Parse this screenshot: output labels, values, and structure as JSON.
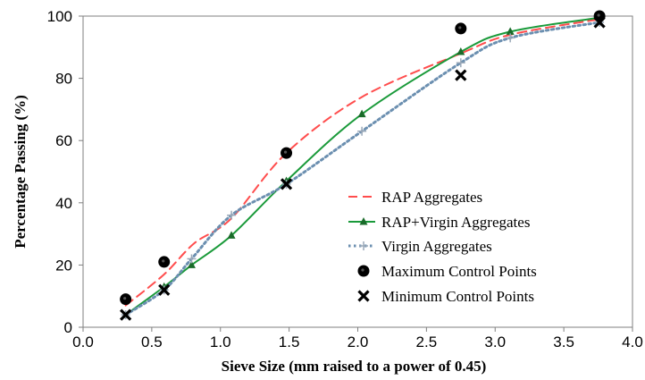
{
  "chart_data": {
    "type": "line",
    "title": "",
    "xlabel": "Sieve Size (mm raised to a power of 0.45)",
    "ylabel": "Percentage Passing (%)",
    "xlim": [
      0,
      4
    ],
    "ylim": [
      0,
      100
    ],
    "x_ticks": [
      "0.0",
      "0.5",
      "1.0",
      "1.5",
      "2.0",
      "2.5",
      "3.0",
      "3.5",
      "4.0"
    ],
    "y_ticks": [
      "0",
      "20",
      "40",
      "60",
      "80",
      "100"
    ],
    "grid": false,
    "legend_position": "bottom-right",
    "series": [
      {
        "name": "RAP Aggregates",
        "color": "#ff4d4d",
        "style": "dashed",
        "marker": "none",
        "x": [
          0.31,
          0.59,
          0.81,
          1.08,
          1.48,
          2.03,
          2.75,
          3.11,
          3.76
        ],
        "y": [
          7,
          17,
          27,
          35,
          56,
          74,
          88,
          94,
          99
        ]
      },
      {
        "name": "RAP+Virgin Aggregates",
        "color": "#1a9a3a",
        "style": "solid",
        "marker": "triangle",
        "x": [
          0.31,
          0.59,
          0.79,
          1.08,
          1.48,
          2.03,
          2.75,
          3.11,
          3.76
        ],
        "y": [
          4,
          13,
          20,
          29.5,
          47,
          68.5,
          88.5,
          95,
          99.5
        ]
      },
      {
        "name": "Virgin Aggregates",
        "color": "#6b8fb0",
        "style": "dotted",
        "marker": "plus",
        "x": [
          0.31,
          0.59,
          0.79,
          1.08,
          1.48,
          2.03,
          2.75,
          3.11,
          3.76
        ],
        "y": [
          4,
          12,
          22,
          36,
          46,
          63,
          85,
          93,
          98
        ]
      },
      {
        "name": "Maximum Control Points",
        "color": "#000000",
        "style": "none",
        "marker": "circle",
        "x": [
          0.31,
          0.59,
          1.48,
          2.75,
          3.76
        ],
        "y": [
          9,
          21,
          56,
          96,
          100
        ]
      },
      {
        "name": "Minimum Control Points",
        "color": "#000000",
        "style": "none",
        "marker": "x",
        "x": [
          0.31,
          0.59,
          1.48,
          2.75,
          3.76
        ],
        "y": [
          4,
          12,
          46,
          81,
          98
        ]
      }
    ]
  }
}
